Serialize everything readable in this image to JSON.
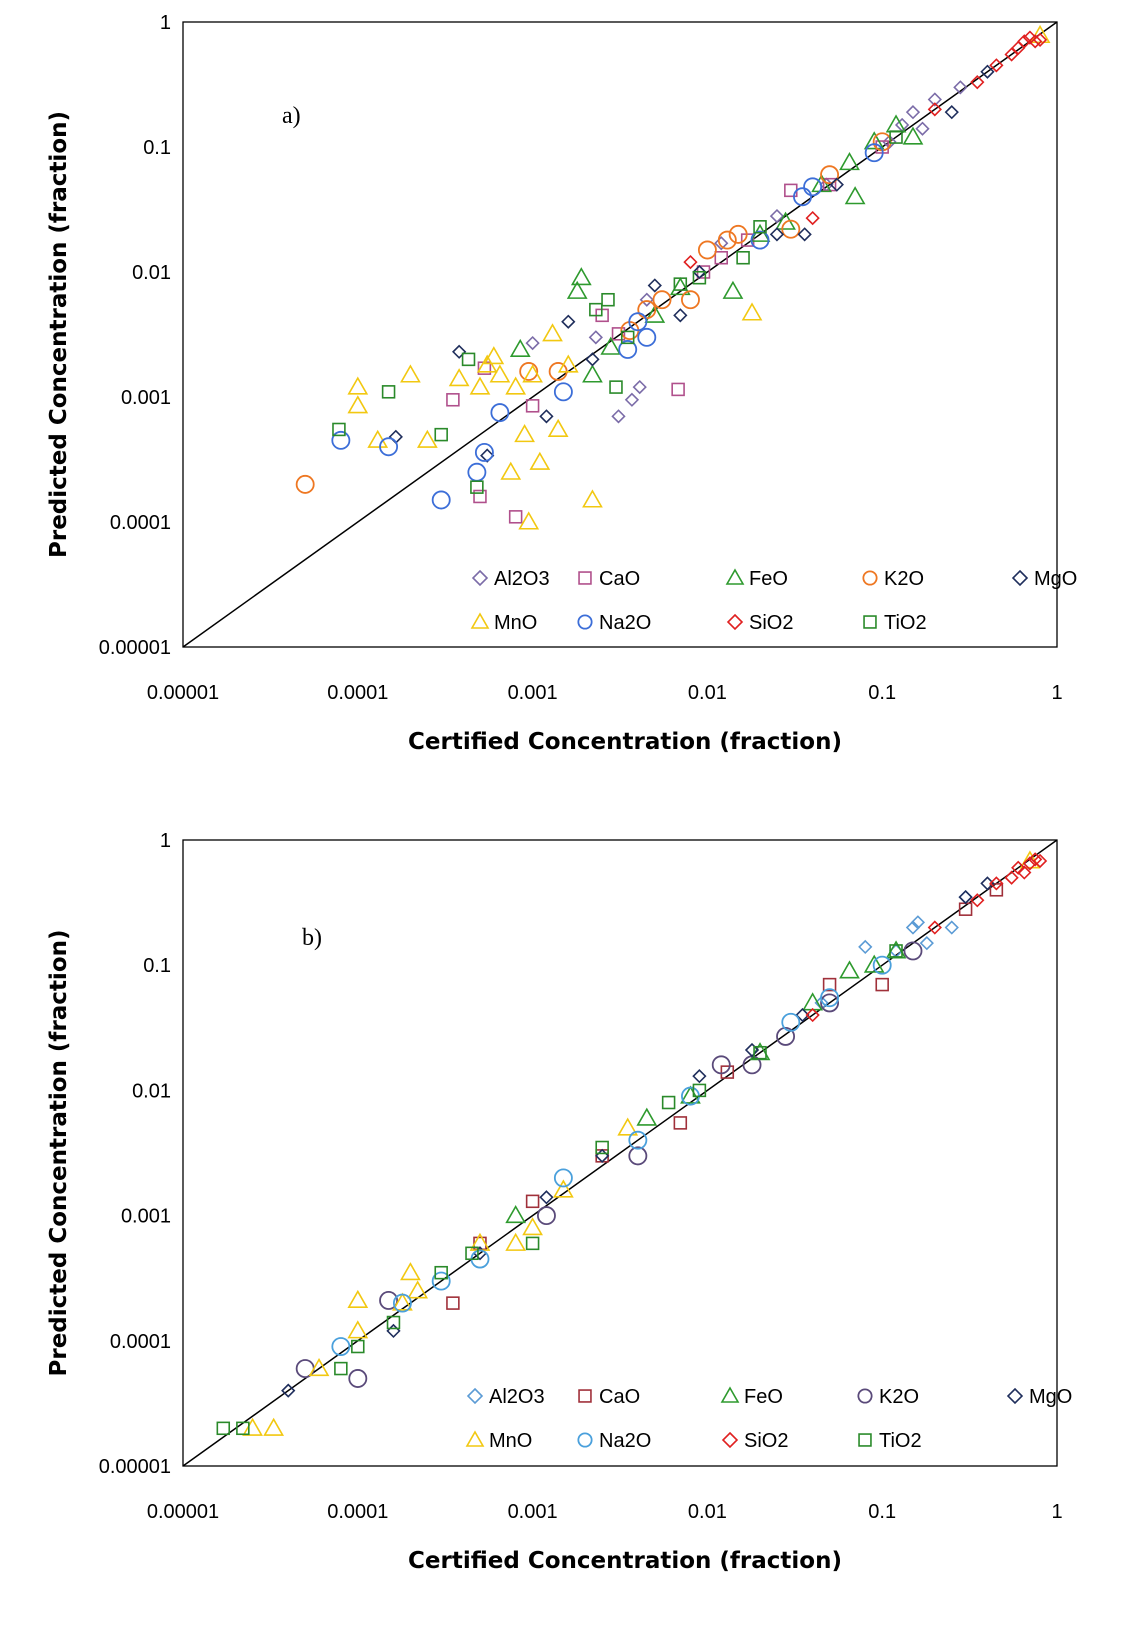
{
  "chart_data": [
    {
      "type": "scatter",
      "panel_label": "a)",
      "xlabel": "Certified Concentration (fraction)",
      "ylabel": "Predicted Concentration (fraction)",
      "scale": "log",
      "xlim": [
        1e-05,
        1
      ],
      "ylim": [
        1e-05,
        1
      ],
      "tick_labels": [
        "0.00001",
        "0.0001",
        "0.001",
        "0.01",
        "0.1",
        "1"
      ],
      "grid": false,
      "legend_position": "bottom-right",
      "reference_line": "y = x",
      "series": [
        {
          "name": "Al2O3",
          "color": "#7b6ca8",
          "marker": "diamond",
          "points": [
            [
              0.001,
              0.0027
            ],
            [
              0.0023,
              0.003
            ],
            [
              0.0031,
              0.0007
            ],
            [
              0.0037,
              0.00095
            ],
            [
              0.0041,
              0.0012
            ],
            [
              0.0045,
              0.006
            ],
            [
              0.012,
              0.017
            ],
            [
              0.025,
              0.028
            ],
            [
              0.048,
              0.05
            ],
            [
              0.11,
              0.11
            ],
            [
              0.13,
              0.15
            ],
            [
              0.15,
              0.19
            ],
            [
              0.17,
              0.14
            ],
            [
              0.2,
              0.24
            ],
            [
              0.28,
              0.3
            ]
          ]
        },
        {
          "name": "CaO",
          "color": "#b0508c",
          "marker": "square",
          "points": [
            [
              0.00035,
              0.00095
            ],
            [
              0.0005,
              0.00016
            ],
            [
              0.00053,
              0.0017
            ],
            [
              0.0008,
              0.00011
            ],
            [
              0.001,
              0.00085
            ],
            [
              0.0025,
              0.0045
            ],
            [
              0.0031,
              0.0032
            ],
            [
              0.0068,
              0.00115
            ],
            [
              0.0095,
              0.01
            ],
            [
              0.012,
              0.013
            ],
            [
              0.017,
              0.018
            ],
            [
              0.03,
              0.045
            ],
            [
              0.05,
              0.05
            ],
            [
              0.1,
              0.1
            ]
          ]
        },
        {
          "name": "FeO",
          "color": "#2e9a2e",
          "marker": "triangle",
          "points": [
            [
              0.00085,
              0.0024
            ],
            [
              0.0018,
              0.007
            ],
            [
              0.0019,
              0.009
            ],
            [
              0.0022,
              0.0015
            ],
            [
              0.0028,
              0.0025
            ],
            [
              0.005,
              0.0045
            ],
            [
              0.007,
              0.0075
            ],
            [
              0.014,
              0.007
            ],
            [
              0.02,
              0.02
            ],
            [
              0.028,
              0.025
            ],
            [
              0.045,
              0.05
            ],
            [
              0.065,
              0.075
            ],
            [
              0.07,
              0.04
            ],
            [
              0.09,
              0.11
            ],
            [
              0.12,
              0.15
            ],
            [
              0.15,
              0.12
            ]
          ]
        },
        {
          "name": "K2O",
          "color": "#ee7722",
          "marker": "circle",
          "points": [
            [
              5e-05,
              0.0002
            ],
            [
              0.00095,
              0.0016
            ],
            [
              0.0014,
              0.0016
            ],
            [
              0.0036,
              0.0034
            ],
            [
              0.0045,
              0.005
            ],
            [
              0.0055,
              0.006
            ],
            [
              0.008,
              0.006
            ],
            [
              0.01,
              0.015
            ],
            [
              0.013,
              0.018
            ],
            [
              0.015,
              0.02
            ],
            [
              0.03,
              0.022
            ],
            [
              0.05,
              0.06
            ],
            [
              0.1,
              0.11
            ]
          ]
        },
        {
          "name": "MgO",
          "color": "#1f2e5c",
          "marker": "diamond",
          "points": [
            [
              0.000165,
              0.00048
            ],
            [
              0.00038,
              0.0023
            ],
            [
              0.00055,
              0.00034
            ],
            [
              0.0012,
              0.0007
            ],
            [
              0.0016,
              0.004
            ],
            [
              0.0022,
              0.002
            ],
            [
              0.005,
              0.0078
            ],
            [
              0.007,
              0.0045
            ],
            [
              0.009,
              0.01
            ],
            [
              0.025,
              0.02
            ],
            [
              0.036,
              0.02
            ],
            [
              0.055,
              0.05
            ],
            [
              0.25,
              0.19
            ],
            [
              0.4,
              0.4
            ]
          ]
        },
        {
          "name": "MnO",
          "color": "#f2c811",
          "marker": "triangle",
          "points": [
            [
              0.0001,
              0.0012
            ],
            [
              0.0001,
              0.00085
            ],
            [
              0.00013,
              0.00045
            ],
            [
              0.0002,
              0.0015
            ],
            [
              0.00025,
              0.00045
            ],
            [
              0.00038,
              0.0014
            ],
            [
              0.0005,
              0.0012
            ],
            [
              0.00055,
              0.0018
            ],
            [
              0.0006,
              0.0021
            ],
            [
              0.00065,
              0.0015
            ],
            [
              0.00075,
              0.00025
            ],
            [
              0.0008,
              0.0012
            ],
            [
              0.0009,
              0.0005
            ],
            [
              0.00095,
              0.0001
            ],
            [
              0.001,
              0.0015
            ],
            [
              0.0011,
              0.0003
            ],
            [
              0.0013,
              0.0032
            ],
            [
              0.0014,
              0.00055
            ],
            [
              0.0016,
              0.0018
            ],
            [
              0.0022,
              0.00015
            ],
            [
              0.018,
              0.0047
            ],
            [
              0.8,
              0.78
            ]
          ]
        },
        {
          "name": "Na2O",
          "color": "#3c6ed8",
          "marker": "circle",
          "points": [
            [
              8e-05,
              0.00045
            ],
            [
              0.00015,
              0.0004
            ],
            [
              0.0003,
              0.00015
            ],
            [
              0.00048,
              0.00025
            ],
            [
              0.00053,
              0.00036
            ],
            [
              0.00065,
              0.00075
            ],
            [
              0.0015,
              0.0011
            ],
            [
              0.0035,
              0.0024
            ],
            [
              0.004,
              0.004
            ],
            [
              0.0045,
              0.003
            ],
            [
              0.02,
              0.018
            ],
            [
              0.035,
              0.04
            ],
            [
              0.04,
              0.048
            ],
            [
              0.09,
              0.09
            ]
          ]
        },
        {
          "name": "SiO2",
          "color": "#e02020",
          "marker": "diamond",
          "points": [
            [
              0.008,
              0.012
            ],
            [
              0.04,
              0.027
            ],
            [
              0.2,
              0.2
            ],
            [
              0.35,
              0.33
            ],
            [
              0.45,
              0.45
            ],
            [
              0.55,
              0.55
            ],
            [
              0.6,
              0.62
            ],
            [
              0.65,
              0.7
            ],
            [
              0.7,
              0.75
            ],
            [
              0.75,
              0.7
            ],
            [
              0.8,
              0.72
            ]
          ]
        },
        {
          "name": "TiO2",
          "color": "#2a8a2a",
          "marker": "square",
          "points": [
            [
              7.8e-05,
              0.00055
            ],
            [
              0.00015,
              0.0011
            ],
            [
              0.0003,
              0.0005
            ],
            [
              0.00043,
              0.002
            ],
            [
              0.00048,
              0.00019
            ],
            [
              0.0023,
              0.005
            ],
            [
              0.0027,
              0.006
            ],
            [
              0.003,
              0.0012
            ],
            [
              0.0035,
              0.003
            ],
            [
              0.007,
              0.008
            ],
            [
              0.009,
              0.009
            ],
            [
              0.016,
              0.013
            ],
            [
              0.02,
              0.023
            ],
            [
              0.12,
              0.12
            ]
          ]
        }
      ]
    },
    {
      "type": "scatter",
      "panel_label": "b)",
      "xlabel": "Certified Concentration (fraction)",
      "ylabel": "Predicted Concentration (fraction)",
      "scale": "log",
      "xlim": [
        1e-05,
        1
      ],
      "ylim": [
        1e-05,
        1
      ],
      "tick_labels": [
        "0.00001",
        "0.0001",
        "0.001",
        "0.01",
        "0.1",
        "1"
      ],
      "grid": false,
      "legend_position": "bottom-right",
      "reference_line": "y = x",
      "series": [
        {
          "name": "Al2O3",
          "color": "#5b9bd5",
          "marker": "diamond",
          "points": [
            [
              0.08,
              0.14
            ],
            [
              0.12,
              0.13
            ],
            [
              0.15,
              0.2
            ],
            [
              0.16,
              0.22
            ],
            [
              0.18,
              0.15
            ],
            [
              0.25,
              0.2
            ],
            [
              0.3,
              0.35
            ],
            [
              0.045,
              0.05
            ]
          ]
        },
        {
          "name": "CaO",
          "color": "#a0303a",
          "marker": "square",
          "points": [
            [
              0.00035,
              0.0002
            ],
            [
              0.0005,
              0.0006
            ],
            [
              0.001,
              0.0013
            ],
            [
              0.0025,
              0.003
            ],
            [
              0.007,
              0.0055
            ],
            [
              0.013,
              0.014
            ],
            [
              0.05,
              0.07
            ],
            [
              0.1,
              0.07
            ],
            [
              0.3,
              0.28
            ],
            [
              0.45,
              0.4
            ]
          ]
        },
        {
          "name": "FeO",
          "color": "#2e9a2e",
          "marker": "triangle",
          "points": [
            [
              0.0008,
              0.001
            ],
            [
              0.0045,
              0.006
            ],
            [
              0.008,
              0.009
            ],
            [
              0.02,
              0.02
            ],
            [
              0.04,
              0.05
            ],
            [
              0.065,
              0.09
            ],
            [
              0.09,
              0.1
            ],
            [
              0.12,
              0.13
            ]
          ]
        },
        {
          "name": "K2O",
          "color": "#5a4a7a",
          "marker": "circle",
          "points": [
            [
              5e-05,
              6e-05
            ],
            [
              0.0001,
              5e-05
            ],
            [
              0.00015,
              0.00021
            ],
            [
              0.0012,
              0.001
            ],
            [
              0.004,
              0.003
            ],
            [
              0.012,
              0.016
            ],
            [
              0.018,
              0.016
            ],
            [
              0.028,
              0.027
            ],
            [
              0.05,
              0.05
            ],
            [
              0.15,
              0.13
            ]
          ]
        },
        {
          "name": "MgO",
          "color": "#1f2e5c",
          "marker": "diamond",
          "points": [
            [
              4e-05,
              4e-05
            ],
            [
              0.00016,
              0.00012
            ],
            [
              0.0005,
              0.0005
            ],
            [
              0.0012,
              0.0014
            ],
            [
              0.0025,
              0.003
            ],
            [
              0.009,
              0.013
            ],
            [
              0.018,
              0.021
            ],
            [
              0.035,
              0.04
            ],
            [
              0.3,
              0.35
            ],
            [
              0.4,
              0.45
            ]
          ]
        },
        {
          "name": "MnO",
          "color": "#f2c811",
          "marker": "triangle",
          "points": [
            [
              2.5e-05,
              2e-05
            ],
            [
              3.3e-05,
              2e-05
            ],
            [
              6e-05,
              6e-05
            ],
            [
              0.0001,
              0.00021
            ],
            [
              0.0001,
              0.00012
            ],
            [
              0.00018,
              0.0002
            ],
            [
              0.0002,
              0.00035
            ],
            [
              0.00022,
              0.00025
            ],
            [
              0.0005,
              0.0006
            ],
            [
              0.0008,
              0.0006
            ],
            [
              0.001,
              0.0008
            ],
            [
              0.0015,
              0.0016
            ],
            [
              0.0035,
              0.005
            ],
            [
              0.7,
              0.68
            ]
          ]
        },
        {
          "name": "Na2O",
          "color": "#4aa0dc",
          "marker": "circle",
          "points": [
            [
              8e-05,
              9e-05
            ],
            [
              0.00018,
              0.0002
            ],
            [
              0.0003,
              0.0003
            ],
            [
              0.0005,
              0.00045
            ],
            [
              0.0015,
              0.002
            ],
            [
              0.004,
              0.004
            ],
            [
              0.008,
              0.009
            ],
            [
              0.03,
              0.035
            ],
            [
              0.05,
              0.055
            ],
            [
              0.1,
              0.1
            ]
          ]
        },
        {
          "name": "SiO2",
          "color": "#e02020",
          "marker": "diamond",
          "points": [
            [
              0.04,
              0.04
            ],
            [
              0.2,
              0.2
            ],
            [
              0.35,
              0.33
            ],
            [
              0.45,
              0.45
            ],
            [
              0.55,
              0.5
            ],
            [
              0.6,
              0.6
            ],
            [
              0.65,
              0.55
            ],
            [
              0.7,
              0.65
            ],
            [
              0.75,
              0.7
            ],
            [
              0.8,
              0.68
            ]
          ]
        },
        {
          "name": "TiO2",
          "color": "#2a8a2a",
          "marker": "square",
          "points": [
            [
              1.7e-05,
              2e-05
            ],
            [
              2.2e-05,
              2e-05
            ],
            [
              8e-05,
              6e-05
            ],
            [
              0.0001,
              9e-05
            ],
            [
              0.00016,
              0.00014
            ],
            [
              0.0003,
              0.00035
            ],
            [
              0.00045,
              0.0005
            ],
            [
              0.001,
              0.0006
            ],
            [
              0.0025,
              0.0035
            ],
            [
              0.006,
              0.008
            ],
            [
              0.009,
              0.01
            ],
            [
              0.02,
              0.02
            ],
            [
              0.12,
              0.13
            ]
          ]
        }
      ]
    }
  ]
}
